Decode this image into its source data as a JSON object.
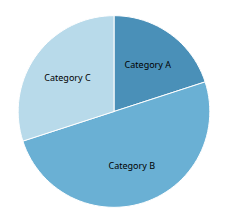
{
  "chart_data": {
    "type": "pie",
    "categories": [
      "Category A",
      "Category B",
      "Category C"
    ],
    "values": [
      20,
      50,
      30
    ],
    "colors": [
      "#4a90b8",
      "#6ab0d4",
      "#b8daea"
    ]
  }
}
